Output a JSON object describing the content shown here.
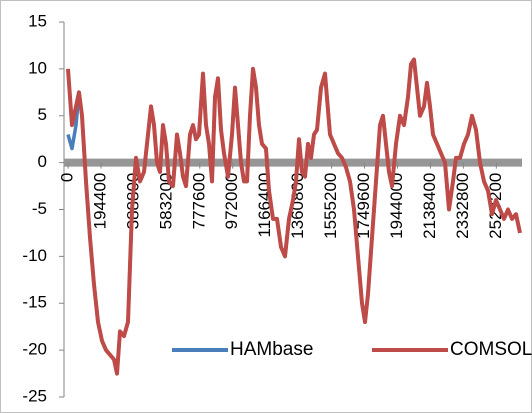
{
  "chart_data": {
    "type": "line",
    "x": [
      0,
      23600,
      47200,
      64900,
      82600,
      106200,
      129800,
      153400,
      177000,
      200600,
      224200,
      247800,
      271400,
      289100,
      306800,
      330400,
      354000,
      377600,
      401200,
      424800,
      448400,
      472000,
      489700,
      507400,
      525100,
      542800,
      560500,
      578200,
      595900,
      619500,
      643100,
      660800,
      678500,
      696200,
      719800,
      737500,
      755200,
      772900,
      796500,
      814200,
      831900,
      849600,
      867300,
      885000,
      902700,
      920400,
      944000,
      967600,
      985300,
      1003000,
      1020700,
      1038400,
      1056100,
      1073800,
      1091500,
      1109200,
      1126900,
      1144600,
      1168200,
      1185900,
      1209500,
      1233100,
      1256700,
      1280300,
      1303900,
      1327500,
      1345200,
      1362900,
      1380600,
      1398300,
      1416000,
      1433700,
      1451400,
      1469100,
      1492700,
      1516300,
      1545800,
      1569400,
      1593000,
      1616600,
      1640200,
      1663800,
      1687400,
      1711000,
      1734600,
      1752300,
      1770000,
      1793600,
      1817200,
      1840800,
      1858500,
      1876200,
      1893900,
      1911600,
      1935200,
      1958800,
      1982400,
      2006000,
      2023700,
      2041400,
      2059100,
      2076800,
      2100400,
      2118100,
      2135800,
      2153500,
      2177100,
      2200700,
      2224300,
      2247900,
      2271500,
      2289200,
      2312800,
      2336400,
      2360000,
      2383600,
      2407200,
      2430800,
      2454400,
      2478000,
      2501600,
      2525200,
      2548800,
      2572400,
      2596000,
      2619600,
      2643200,
      2666800
    ],
    "series": [
      {
        "name": "HAMbase",
        "color": "#4a7ebb",
        "values": [
          3,
          1.5,
          4,
          7.5,
          5,
          -2,
          -8,
          -13,
          -17,
          -19,
          -20,
          -20.5,
          -21,
          -22.5,
          -18,
          -18.5,
          -17,
          -5,
          0.5,
          -2,
          -1,
          3,
          6,
          4,
          0,
          -1,
          4,
          2,
          -2,
          -2.5,
          3,
          1,
          -1.5,
          -2.5,
          3,
          4,
          2.5,
          3,
          9.5,
          4,
          2,
          -2,
          7,
          9,
          3.5,
          1,
          -1.5,
          3,
          8,
          4,
          0,
          -2,
          -2,
          5,
          10,
          8,
          4,
          2,
          1.5,
          -3,
          -6,
          -6,
          -9,
          -10,
          -6,
          -4,
          -2,
          2.5,
          -1,
          -1.5,
          2,
          0.5,
          3,
          3.5,
          8,
          9.5,
          3,
          2,
          1,
          0.5,
          -0.5,
          -2,
          -5,
          -10,
          -15,
          -17,
          -14,
          -8,
          -2,
          4,
          5,
          2,
          -1,
          -2.5,
          2,
          5,
          4,
          7,
          10.5,
          11,
          8,
          5,
          6,
          8.5,
          6,
          3,
          2,
          1,
          0,
          -5,
          -2,
          0.5,
          0.5,
          2,
          3,
          5,
          3.5,
          0,
          -2,
          -3,
          -5.5,
          -4,
          -5,
          -6,
          -5,
          -6,
          -5.5,
          -7.5
        ]
      },
      {
        "name": "COMSOL",
        "color": "#be4b48",
        "values": [
          10,
          4,
          6,
          7.5,
          5,
          -2,
          -8,
          -13,
          -17,
          -19,
          -20,
          -20.5,
          -21,
          -22.5,
          -18,
          -18.5,
          -17,
          -5,
          0.5,
          -2,
          -1,
          3,
          6,
          4,
          0,
          -1,
          4,
          2,
          -2,
          -2.5,
          3,
          1,
          -1.5,
          -2.5,
          3,
          4,
          2.5,
          3,
          9.5,
          4,
          2,
          -2,
          7,
          9,
          3.5,
          1,
          -1.5,
          3,
          8,
          4,
          0,
          -2,
          -2,
          5,
          10,
          8,
          4,
          2,
          1.5,
          -3,
          -6,
          -6,
          -9,
          -10,
          -6,
          -4,
          -2,
          2.5,
          -1,
          -1.5,
          2,
          0.5,
          3,
          3.5,
          8,
          9.5,
          3,
          2,
          1,
          0.5,
          -0.5,
          -2,
          -5,
          -10,
          -15,
          -17,
          -14,
          -8,
          -2,
          4,
          5,
          2,
          -1,
          -2.5,
          2,
          5,
          4,
          7,
          10.5,
          11,
          8,
          5,
          6,
          8.5,
          6,
          3,
          2,
          1,
          0,
          -5,
          -2,
          0.5,
          0.5,
          2,
          3,
          5,
          3.5,
          0,
          -2,
          -3,
          -5.5,
          -4,
          -5,
          -6,
          -5,
          -6,
          -5.5,
          -7.5
        ]
      }
    ],
    "xlim": [
      0,
      2666800
    ],
    "xticks": [
      0,
      194400,
      388800,
      583200,
      777600,
      972000,
      1166400,
      1360800,
      1555200,
      1749600,
      1944000,
      2138400,
      2332800,
      2527200
    ],
    "ylim": [
      -25,
      15
    ],
    "yticks": [
      -25,
      -20,
      -15,
      -10,
      -5,
      0,
      5,
      10,
      15
    ],
    "grid": false,
    "legend": "bottom"
  }
}
